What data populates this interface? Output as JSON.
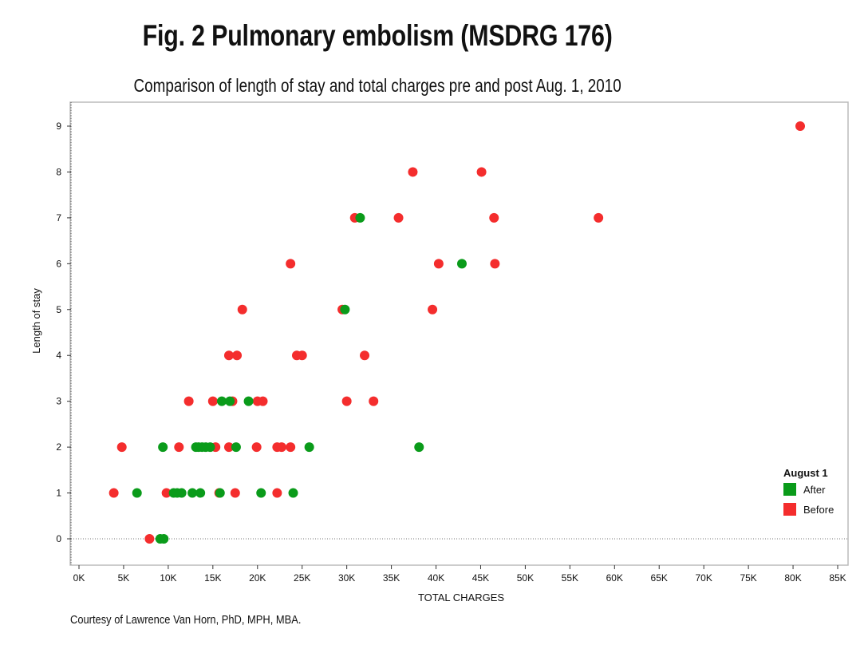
{
  "title": "Fig. 2 Pulmonary embolism (MSDRG 176)",
  "subtitle": "Comparison of length of stay and total charges pre and post Aug. 1, 2010",
  "credit": "Courtesy of Lawrence Van Horn, PhD, MPH, MBA.",
  "colors": {
    "after": "#0a9b1a",
    "before": "#f42d2d"
  },
  "chart_data": {
    "type": "scatter",
    "xlabel": "TOTAL CHARGES",
    "ylabel": "Length of stay",
    "xlim": [
      0,
      85000
    ],
    "ylim": [
      0,
      9
    ],
    "x_ticks": [
      0,
      5000,
      10000,
      15000,
      20000,
      25000,
      30000,
      35000,
      40000,
      45000,
      50000,
      55000,
      60000,
      65000,
      70000,
      75000,
      80000,
      85000
    ],
    "x_tick_labels": [
      "0K",
      "5K",
      "10K",
      "15K",
      "20K",
      "25K",
      "30K",
      "35K",
      "40K",
      "45K",
      "50K",
      "55K",
      "60K",
      "65K",
      "70K",
      "75K",
      "80K",
      "85K"
    ],
    "y_ticks": [
      0,
      1,
      2,
      3,
      4,
      5,
      6,
      7,
      8,
      9
    ],
    "y_tick_labels": [
      "0",
      "1",
      "2",
      "3",
      "4",
      "5",
      "6",
      "7",
      "8",
      "9"
    ],
    "grid": false,
    "legend": {
      "title": "August 1",
      "position": "right",
      "entries": [
        "After",
        "Before"
      ]
    },
    "series": [
      {
        "name": "Before",
        "points": [
          [
            3900,
            1
          ],
          [
            4800,
            2
          ],
          [
            7900,
            0
          ],
          [
            9800,
            1
          ],
          [
            11200,
            2
          ],
          [
            12300,
            3
          ],
          [
            15000,
            3
          ],
          [
            15300,
            2
          ],
          [
            15700,
            1
          ],
          [
            16800,
            4
          ],
          [
            16800,
            2
          ],
          [
            17200,
            3
          ],
          [
            17500,
            1
          ],
          [
            17700,
            4
          ],
          [
            18300,
            5
          ],
          [
            19900,
            2
          ],
          [
            20000,
            3
          ],
          [
            20600,
            3
          ],
          [
            22200,
            2
          ],
          [
            22200,
            1
          ],
          [
            22700,
            2
          ],
          [
            23700,
            6
          ],
          [
            23700,
            2
          ],
          [
            24400,
            4
          ],
          [
            25000,
            4
          ],
          [
            29500,
            5
          ],
          [
            30000,
            3
          ],
          [
            30900,
            7
          ],
          [
            32000,
            4
          ],
          [
            33000,
            3
          ],
          [
            35800,
            7
          ],
          [
            37400,
            8
          ],
          [
            39600,
            5
          ],
          [
            40300,
            6
          ],
          [
            45100,
            8
          ],
          [
            46500,
            7
          ],
          [
            46600,
            6
          ],
          [
            58200,
            7
          ],
          [
            80800,
            9
          ]
        ]
      },
      {
        "name": "After",
        "points": [
          [
            6500,
            1
          ],
          [
            9100,
            0
          ],
          [
            9500,
            0
          ],
          [
            9400,
            2
          ],
          [
            10600,
            1
          ],
          [
            11000,
            1
          ],
          [
            11500,
            1
          ],
          [
            12700,
            1
          ],
          [
            13100,
            2
          ],
          [
            13400,
            2
          ],
          [
            13600,
            1
          ],
          [
            13800,
            2
          ],
          [
            14200,
            2
          ],
          [
            14700,
            2
          ],
          [
            15800,
            1
          ],
          [
            16000,
            3
          ],
          [
            16900,
            3
          ],
          [
            17600,
            2
          ],
          [
            19000,
            3
          ],
          [
            20400,
            1
          ],
          [
            24000,
            1
          ],
          [
            25800,
            2
          ],
          [
            29800,
            5
          ],
          [
            31500,
            7
          ],
          [
            38100,
            2
          ],
          [
            42900,
            6
          ]
        ]
      }
    ]
  }
}
